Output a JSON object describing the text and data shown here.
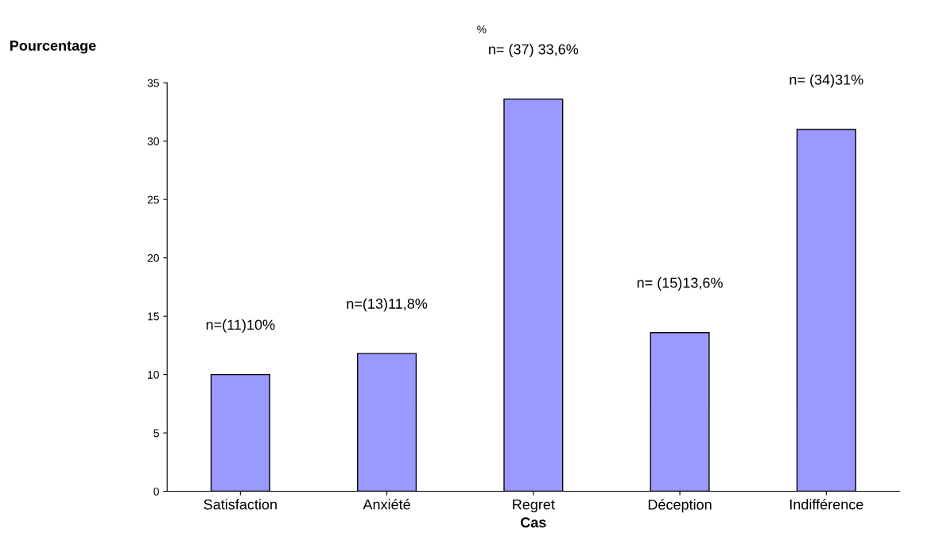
{
  "chart_data": {
    "type": "bar",
    "title": "%",
    "ylabel": "Pourcentage",
    "xlabel": "Cas",
    "categories": [
      "Satisfaction",
      "Anxiété",
      "Regret",
      "Déception",
      "Indifférence"
    ],
    "values": [
      10,
      11.8,
      33.6,
      13.6,
      31
    ],
    "value_labels": [
      "n=(11)10%",
      "n=(13)11,8%",
      "n= (37) 33,6%",
      "n= (15)13,6%",
      "n= (34)31%"
    ],
    "color": "#9999ff",
    "ylim": [
      0,
      35
    ],
    "yticks": [
      0,
      5,
      10,
      15,
      20,
      25,
      30,
      35
    ],
    "grid": false
  }
}
